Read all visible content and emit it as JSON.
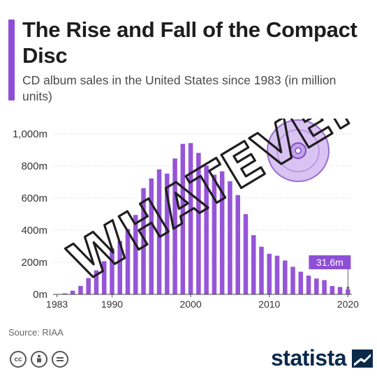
{
  "title": "The Rise and Fall of the Compact Disc",
  "subtitle": "CD album sales in the United States since 1983 (in million units)",
  "source": "Source: RIAA",
  "brand": "statista",
  "overlay_text": "WHATEVER!",
  "colors": {
    "bar": "#9655d8",
    "accent": "#8e4fd6",
    "annotation": "#8e4fd6",
    "brand": "#0b2a4a"
  },
  "chart_data": {
    "type": "bar",
    "title": "The Rise and Fall of the Compact Disc",
    "ylabel": "",
    "xlabel": "",
    "ylim": [
      0,
      1000
    ],
    "yticks": [
      0,
      200,
      400,
      600,
      800,
      1000
    ],
    "ytick_labels": [
      "0m",
      "200m",
      "400m",
      "600m",
      "800m",
      "1,000m"
    ],
    "xtick_labels": [
      "1983",
      "1990",
      "2000",
      "2010",
      "2020"
    ],
    "grid": true,
    "categories": [
      "1983",
      "1984",
      "1985",
      "1986",
      "1987",
      "1988",
      "1989",
      "1990",
      "1991",
      "1992",
      "1993",
      "1994",
      "1995",
      "1996",
      "1997",
      "1998",
      "1999",
      "2000",
      "2001",
      "2002",
      "2003",
      "2004",
      "2005",
      "2006",
      "2007",
      "2008",
      "2009",
      "2010",
      "2011",
      "2012",
      "2013",
      "2014",
      "2015",
      "2016",
      "2017",
      "2018",
      "2019",
      "2020"
    ],
    "values": [
      1,
      6,
      23,
      53,
      102,
      150,
      207,
      287,
      333,
      408,
      495,
      662,
      723,
      779,
      753,
      847,
      938,
      943,
      882,
      803,
      746,
      767,
      705,
      619,
      500,
      369,
      297,
      253,
      241,
      211,
      172,
      141,
      117,
      99,
      89,
      52,
      46,
      31.6
    ],
    "annotation": {
      "category": "2020",
      "label": "31.6m"
    }
  }
}
